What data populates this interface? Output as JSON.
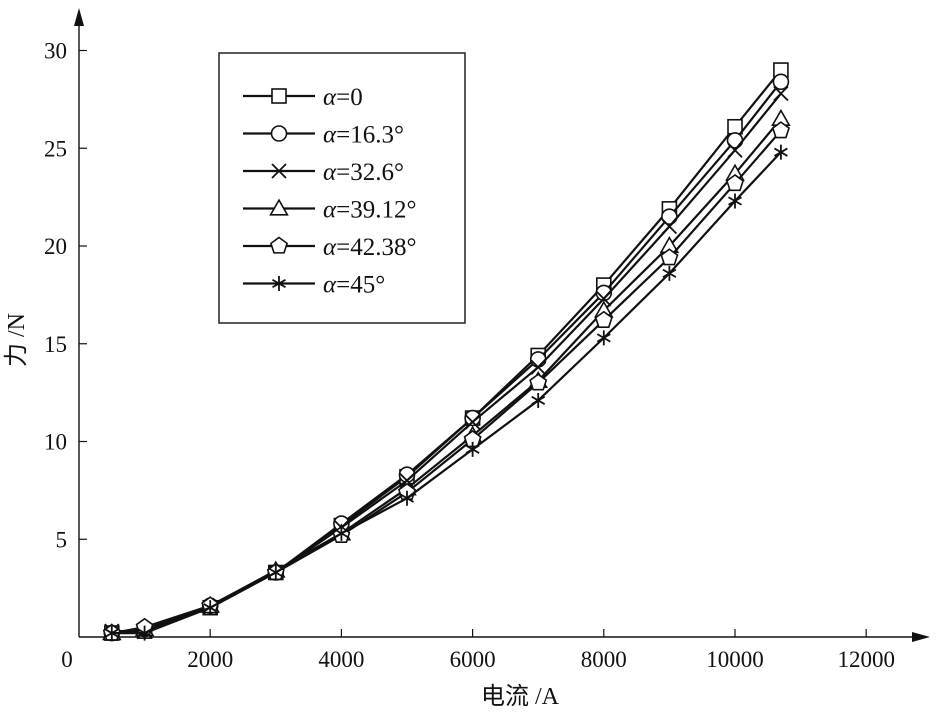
{
  "chart_data": {
    "type": "line",
    "xlabel": "电流 /A",
    "ylabel": "力 /N",
    "origin_label": "0",
    "xlim": [
      0,
      13000
    ],
    "ylim": [
      0,
      30
    ],
    "xticks": [
      2000,
      4000,
      6000,
      8000,
      10000,
      12000
    ],
    "xtick_labels": [
      "2000",
      "4000",
      "6000",
      "8000",
      "10000",
      "12000"
    ],
    "yticks": [
      5,
      10,
      15,
      20,
      25,
      30
    ],
    "ytick_labels": [
      "5",
      "10",
      "15",
      "20",
      "25",
      "30"
    ],
    "grid": false,
    "legend_position": "top-left",
    "line_color": "#111111",
    "series": [
      {
        "name": "α=0",
        "alpha_symbol": "α",
        "alpha_value": "=0",
        "marker": "square",
        "x": [
          500,
          1000,
          2000,
          3000,
          4000,
          5000,
          6000,
          7000,
          8000,
          9000,
          10000,
          10700
        ],
        "y": [
          0.2,
          0.3,
          1.5,
          3.3,
          5.7,
          8.2,
          11.2,
          14.4,
          18.0,
          21.9,
          26.1,
          29.0
        ]
      },
      {
        "name": "α=16.3°",
        "alpha_symbol": "α",
        "alpha_value": "=16.3°",
        "marker": "circle",
        "x": [
          500,
          1000,
          2000,
          3000,
          4000,
          5000,
          6000,
          7000,
          8000,
          9000,
          10000,
          10700
        ],
        "y": [
          0.2,
          0.4,
          1.6,
          3.3,
          5.8,
          8.3,
          11.2,
          14.2,
          17.6,
          21.5,
          25.4,
          28.4
        ]
      },
      {
        "name": "α=32.6°",
        "alpha_symbol": "α",
        "alpha_value": "=32.6°",
        "marker": "x",
        "x": [
          500,
          1000,
          2000,
          3000,
          4000,
          5000,
          6000,
          7000,
          8000,
          9000,
          10000,
          10700
        ],
        "y": [
          0.3,
          0.3,
          1.5,
          3.3,
          5.6,
          8.0,
          11.0,
          13.8,
          17.3,
          21.0,
          24.9,
          27.8
        ]
      },
      {
        "name": "α=39.12°",
        "alpha_symbol": "α",
        "alpha_value": "=39.12°",
        "marker": "triangle",
        "x": [
          500,
          1000,
          2000,
          3000,
          4000,
          5000,
          6000,
          7000,
          8000,
          9000,
          10000,
          10700
        ],
        "y": [
          0.2,
          0.4,
          1.6,
          3.4,
          5.3,
          7.6,
          10.3,
          13.1,
          16.7,
          20.0,
          23.7,
          26.5
        ]
      },
      {
        "name": "α=42.38°",
        "alpha_symbol": "α",
        "alpha_value": "=42.38°",
        "marker": "pentagon",
        "x": [
          500,
          1000,
          2000,
          3000,
          4000,
          5000,
          6000,
          7000,
          8000,
          9000,
          10000,
          10700
        ],
        "y": [
          0.2,
          0.5,
          1.6,
          3.3,
          5.2,
          7.4,
          10.1,
          13.0,
          16.2,
          19.4,
          23.2,
          25.9
        ]
      },
      {
        "name": "α=45°",
        "alpha_symbol": "α",
        "alpha_value": "=45°",
        "marker": "asterisk",
        "x": [
          500,
          1000,
          2000,
          3000,
          4000,
          5000,
          6000,
          7000,
          8000,
          9000,
          10000,
          10700
        ],
        "y": [
          0.2,
          0.2,
          1.5,
          3.3,
          5.3,
          7.1,
          9.6,
          12.1,
          15.3,
          18.6,
          22.3,
          24.8
        ]
      }
    ]
  }
}
